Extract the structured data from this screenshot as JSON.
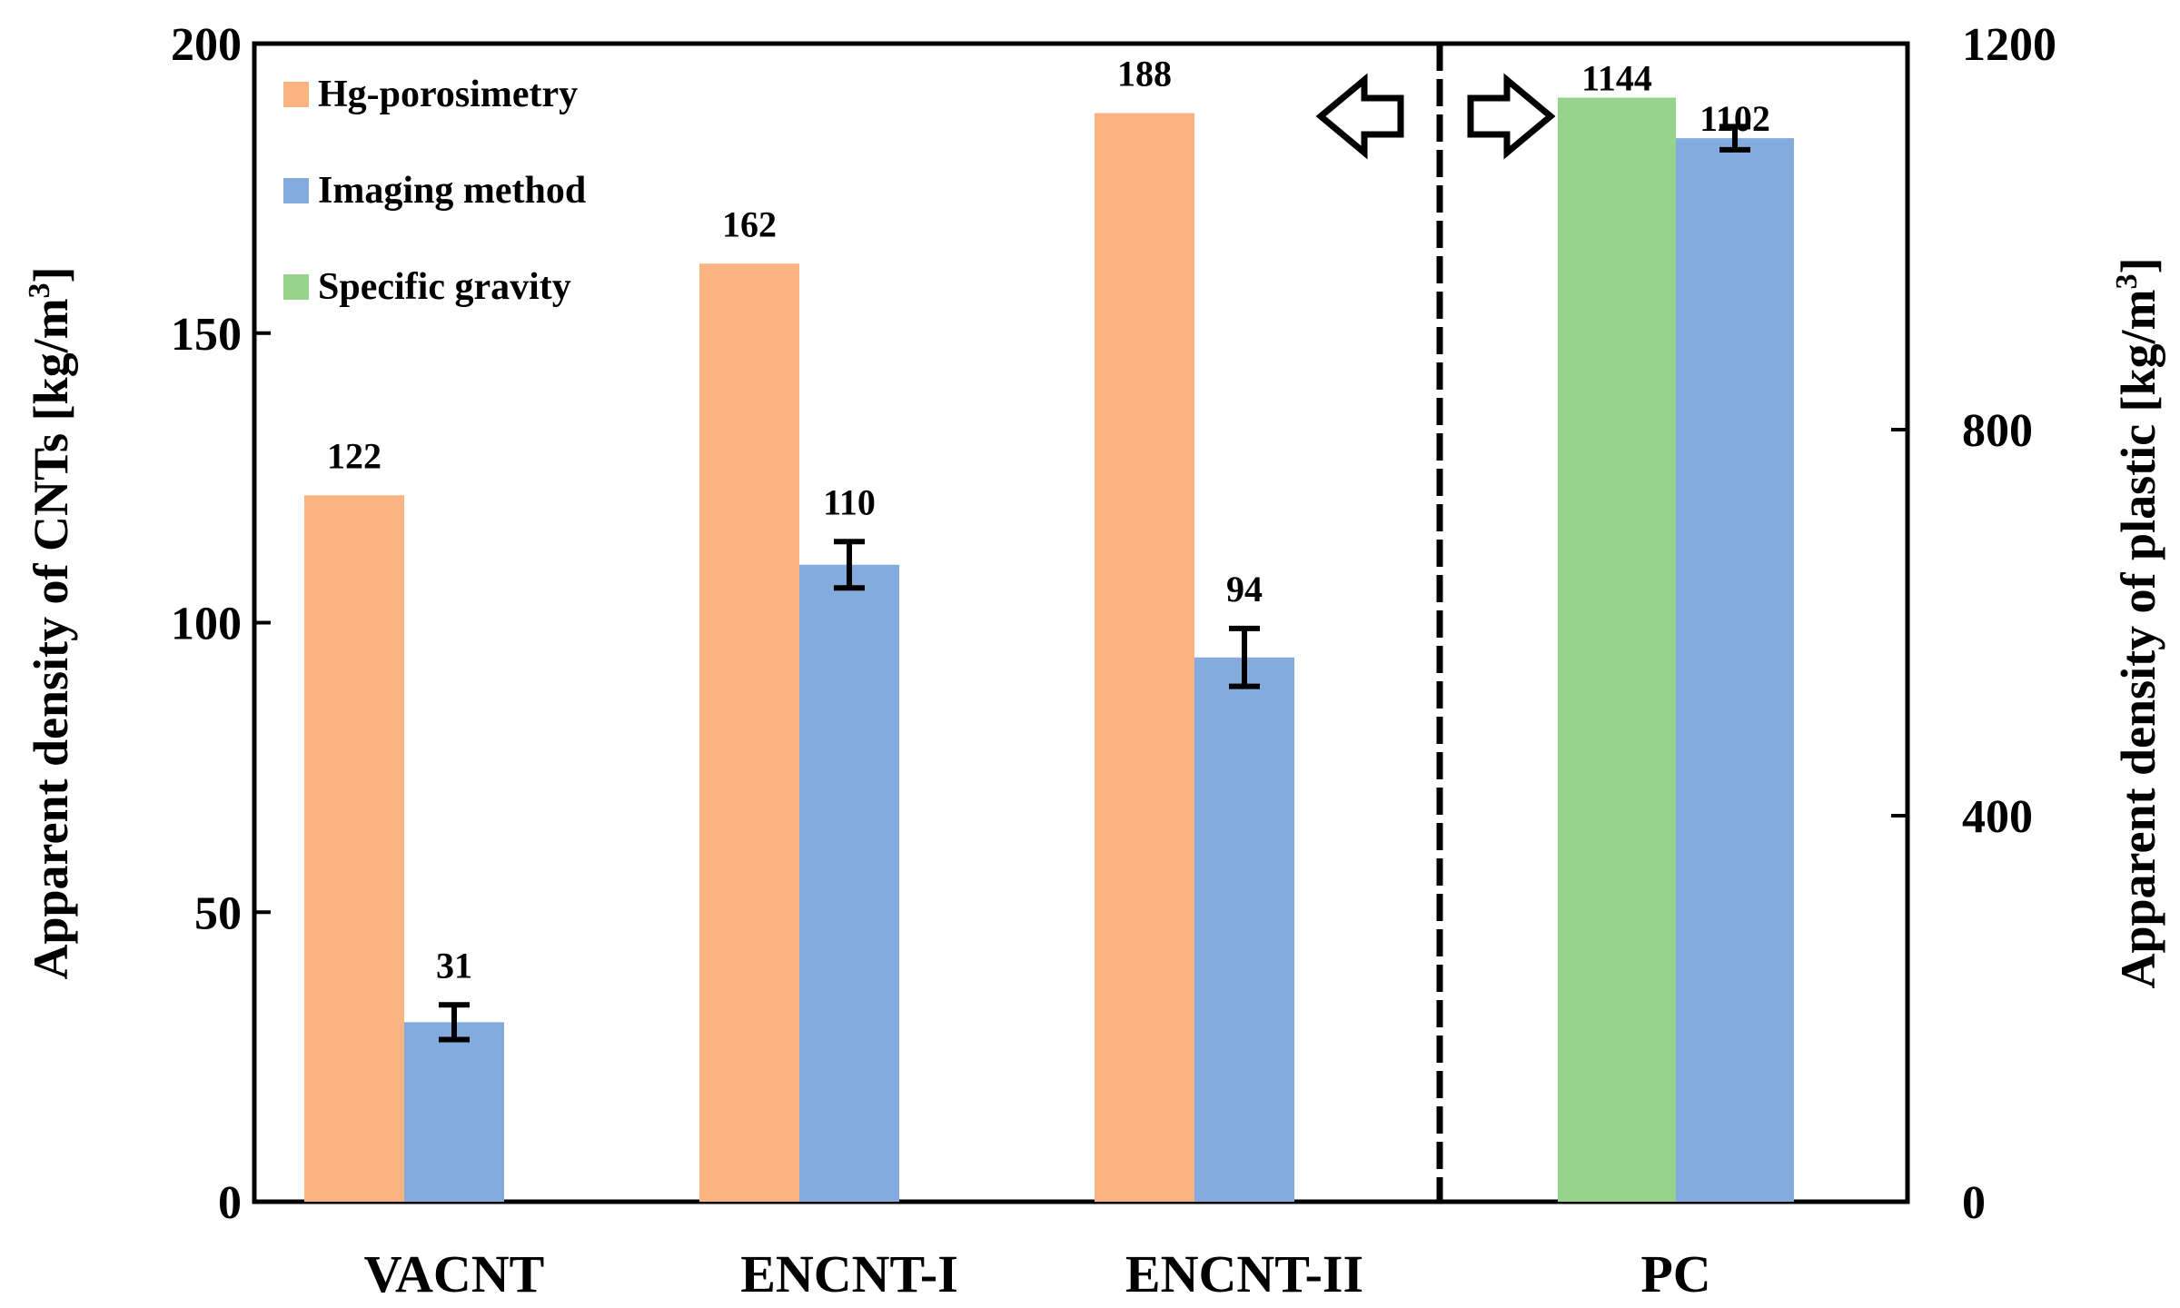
{
  "chart_data": {
    "type": "bar",
    "categories": [
      "VACNT",
      "ENCNT-I",
      "ENCNT-II",
      "PC"
    ],
    "series": [
      {
        "name": "Hg-porosimetry",
        "color": "#FBB382",
        "axis": "left",
        "values": [
          122,
          162,
          188,
          null
        ],
        "errors": [
          null,
          null,
          null,
          null
        ]
      },
      {
        "name": "Imaging method",
        "color": "#83ABDD",
        "axis": "mixed",
        "values": [
          31,
          110,
          94,
          1102
        ],
        "errors": [
          3,
          4,
          5,
          12
        ]
      },
      {
        "name": "Specific gravity",
        "color": "#98D38B",
        "axis": "right",
        "values": [
          null,
          null,
          null,
          1144
        ],
        "errors": [
          null,
          null,
          null,
          null
        ]
      }
    ],
    "value_labels": [
      "122",
      "31",
      "162",
      "110",
      "188",
      "94",
      "1144",
      "1102"
    ],
    "left_axis": {
      "title": "Apparent density of CNTs  [kg/m",
      "superscript": "3",
      "title_end": "]",
      "ylim": [
        0,
        200
      ],
      "ticks": [
        "0",
        "50",
        "100",
        "150",
        "200"
      ]
    },
    "right_axis": {
      "title": "Apparent density of plastic   [kg/m",
      "superscript": "3",
      "title_end": "]",
      "ylim": [
        0,
        1200
      ],
      "ticks": [
        "0",
        "400",
        "800",
        "1200"
      ]
    },
    "divider": "dashed vertical line between ENCNT-II and PC; left arrow points to left axis, right arrow points to right axis",
    "legend_position": "top-left"
  }
}
